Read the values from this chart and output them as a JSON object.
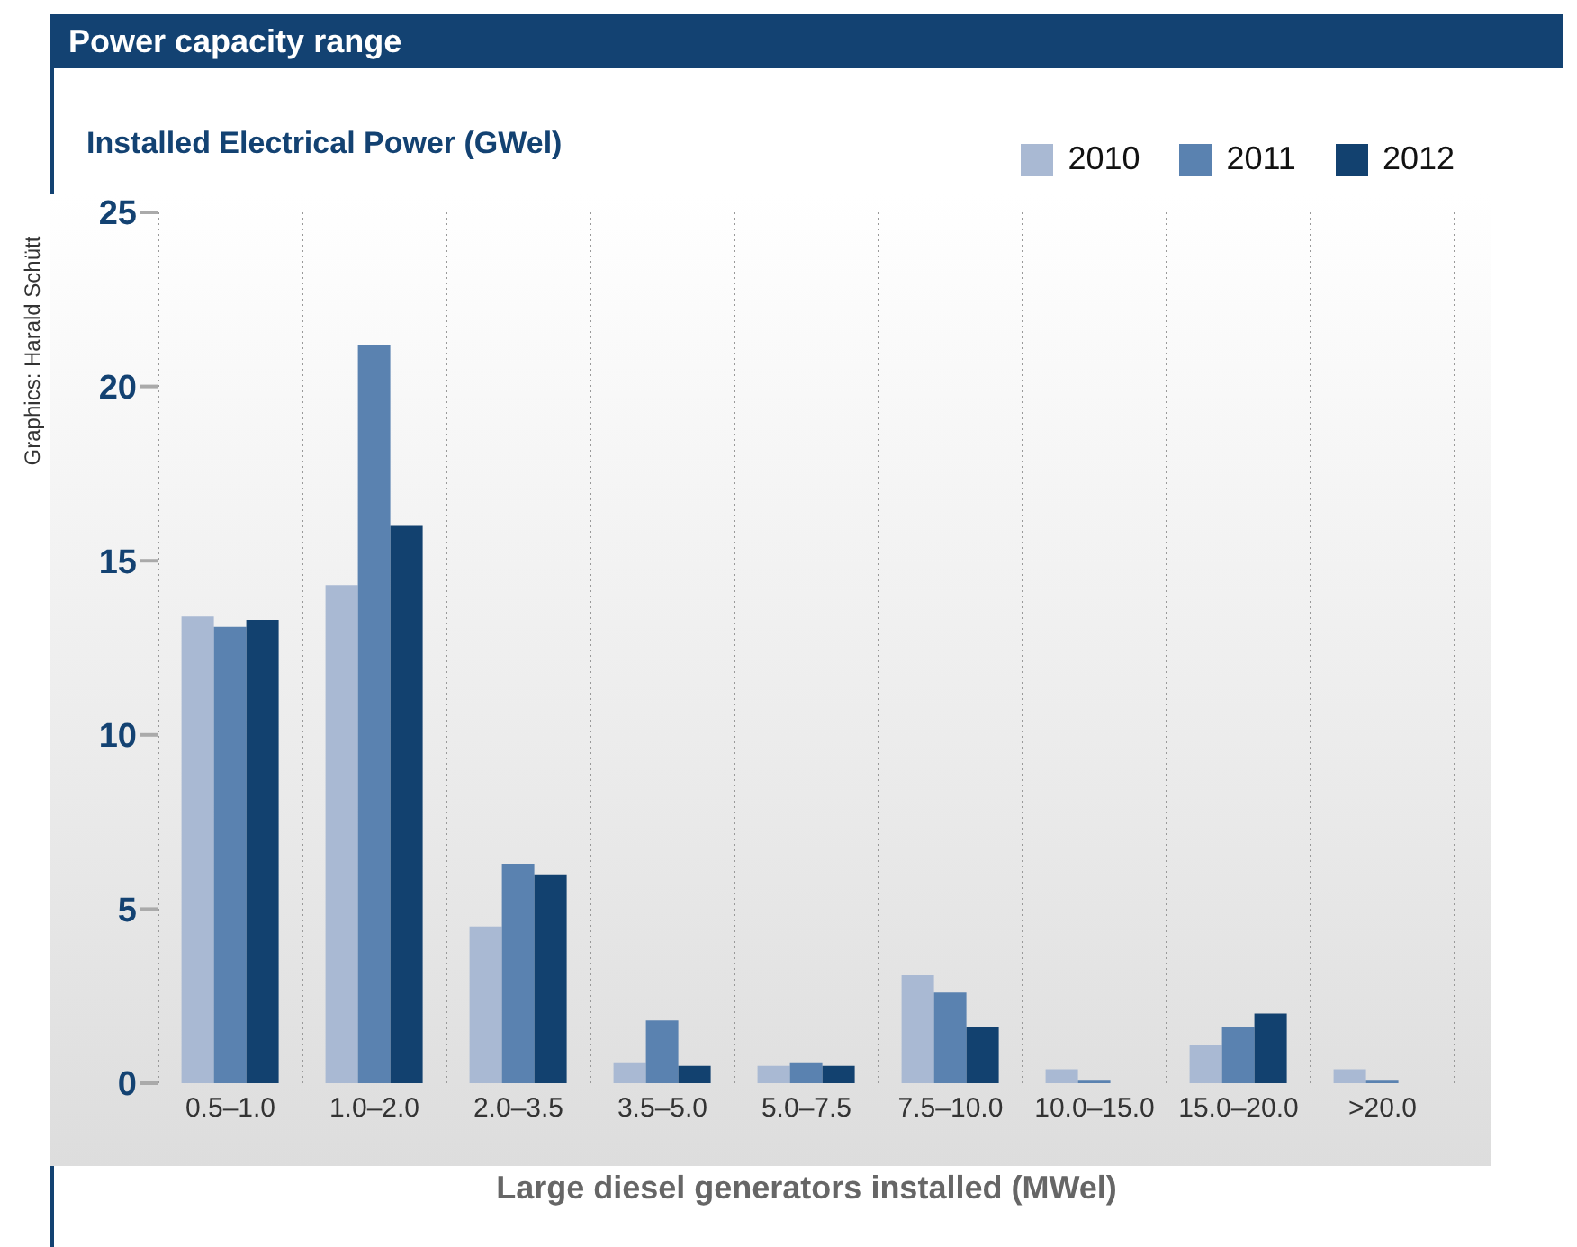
{
  "chart_data": {
    "type": "bar",
    "title": "Power capacity range",
    "ylabel": "Installed Electrical Power (GWel)",
    "xlabel": "Large diesel generators installed (MWel)",
    "annotations": [
      "Graphics: Harald Schütt"
    ],
    "categories": [
      "0.5–1.0",
      "1.0–2.0",
      "2.0–3.5",
      "3.5–5.0",
      "5.0–7.5",
      "7.5–10.0",
      "10.0–15.0",
      "15.0–20.0",
      ">20.0"
    ],
    "series": [
      {
        "name": "2010",
        "color": "#a9b9d3",
        "values": [
          13.4,
          14.3,
          4.5,
          0.6,
          0.5,
          3.1,
          0.4,
          1.1,
          0.4
        ]
      },
      {
        "name": "2011",
        "color": "#5a82b0",
        "values": [
          13.1,
          21.2,
          6.3,
          1.8,
          0.6,
          2.6,
          0.1,
          1.6,
          0.1
        ]
      },
      {
        "name": "2012",
        "color": "#12416f",
        "values": [
          13.3,
          16.0,
          6.0,
          0.5,
          0.5,
          1.6,
          0.0,
          2.0,
          null
        ]
      }
    ],
    "ylim": [
      0,
      25
    ],
    "yticks": [
      0,
      5,
      10,
      15,
      20,
      25
    ],
    "grid": "x",
    "legend": "top right"
  }
}
